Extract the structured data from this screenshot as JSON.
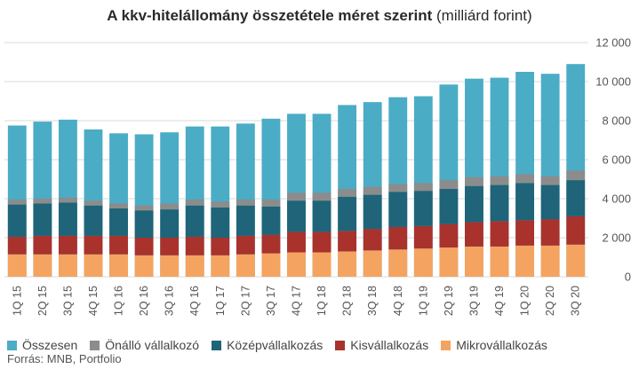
{
  "title": {
    "main": "A kkv-hitelállomány összetétele méret szerint",
    "unit": "(milliárd forint)"
  },
  "source": "Forrás: MNB, Portfolio",
  "chart_data": {
    "type": "bar",
    "stacked_component_series": [
      "Mikrovállalkozás",
      "Kisvállalkozás",
      "Középvállalkozás",
      "Önálló vállalkozó"
    ],
    "total_series": "Összesen",
    "categories": [
      "1Q 15",
      "2Q 15",
      "3Q 15",
      "4Q 15",
      "1Q 16",
      "2Q 16",
      "3Q 16",
      "4Q 16",
      "1Q 17",
      "2Q 17",
      "3Q 17",
      "4Q 17",
      "1Q 18",
      "2Q 18",
      "3Q 18",
      "4Q 18",
      "1Q 19",
      "2Q 19",
      "3Q 19",
      "4Q 19",
      "1Q 20",
      "2Q 20",
      "3Q 20"
    ],
    "series": [
      {
        "name": "Összesen",
        "color": "#4bacc6",
        "values": [
          7750,
          7950,
          8050,
          7550,
          7350,
          7300,
          7400,
          7700,
          7700,
          7850,
          8100,
          8350,
          8350,
          8800,
          8950,
          9200,
          9250,
          9850,
          10150,
          10200,
          10500,
          10400,
          10900
        ]
      },
      {
        "name": "Önálló vállalkozó",
        "color": "#8c8c8c",
        "values": [
          250,
          250,
          250,
          250,
          250,
          250,
          300,
          300,
          300,
          300,
          350,
          400,
          400,
          400,
          400,
          400,
          400,
          450,
          450,
          450,
          450,
          450,
          500
        ]
      },
      {
        "name": "Középvállalkozás",
        "color": "#1f6478",
        "values": [
          1650,
          1650,
          1700,
          1550,
          1400,
          1400,
          1450,
          1600,
          1550,
          1550,
          1450,
          1600,
          1600,
          1750,
          1750,
          1800,
          1800,
          1800,
          1850,
          1850,
          1900,
          1750,
          1850
        ]
      },
      {
        "name": "Kisvállalkozás",
        "color": "#a9322d",
        "values": [
          900,
          950,
          950,
          950,
          950,
          900,
          900,
          950,
          900,
          950,
          950,
          1050,
          1050,
          1050,
          1100,
          1150,
          1150,
          1200,
          1250,
          1300,
          1300,
          1350,
          1450
        ]
      },
      {
        "name": "Mikrovállalkozás",
        "color": "#f4a460",
        "values": [
          1150,
          1150,
          1150,
          1150,
          1150,
          1100,
          1100,
          1100,
          1100,
          1150,
          1200,
          1250,
          1250,
          1300,
          1350,
          1400,
          1450,
          1500,
          1550,
          1550,
          1600,
          1600,
          1650
        ]
      }
    ],
    "ylim": [
      0,
      12000
    ],
    "yticks": [
      "0",
      "2 000",
      "4 000",
      "6 000",
      "8 000",
      "10 000",
      "12 000"
    ],
    "ytick_values": [
      0,
      2000,
      4000,
      6000,
      8000,
      10000,
      12000
    ],
    "y_axis_position": "right",
    "grid": true,
    "legend": "bottom",
    "xlabel": "",
    "ylabel": ""
  }
}
